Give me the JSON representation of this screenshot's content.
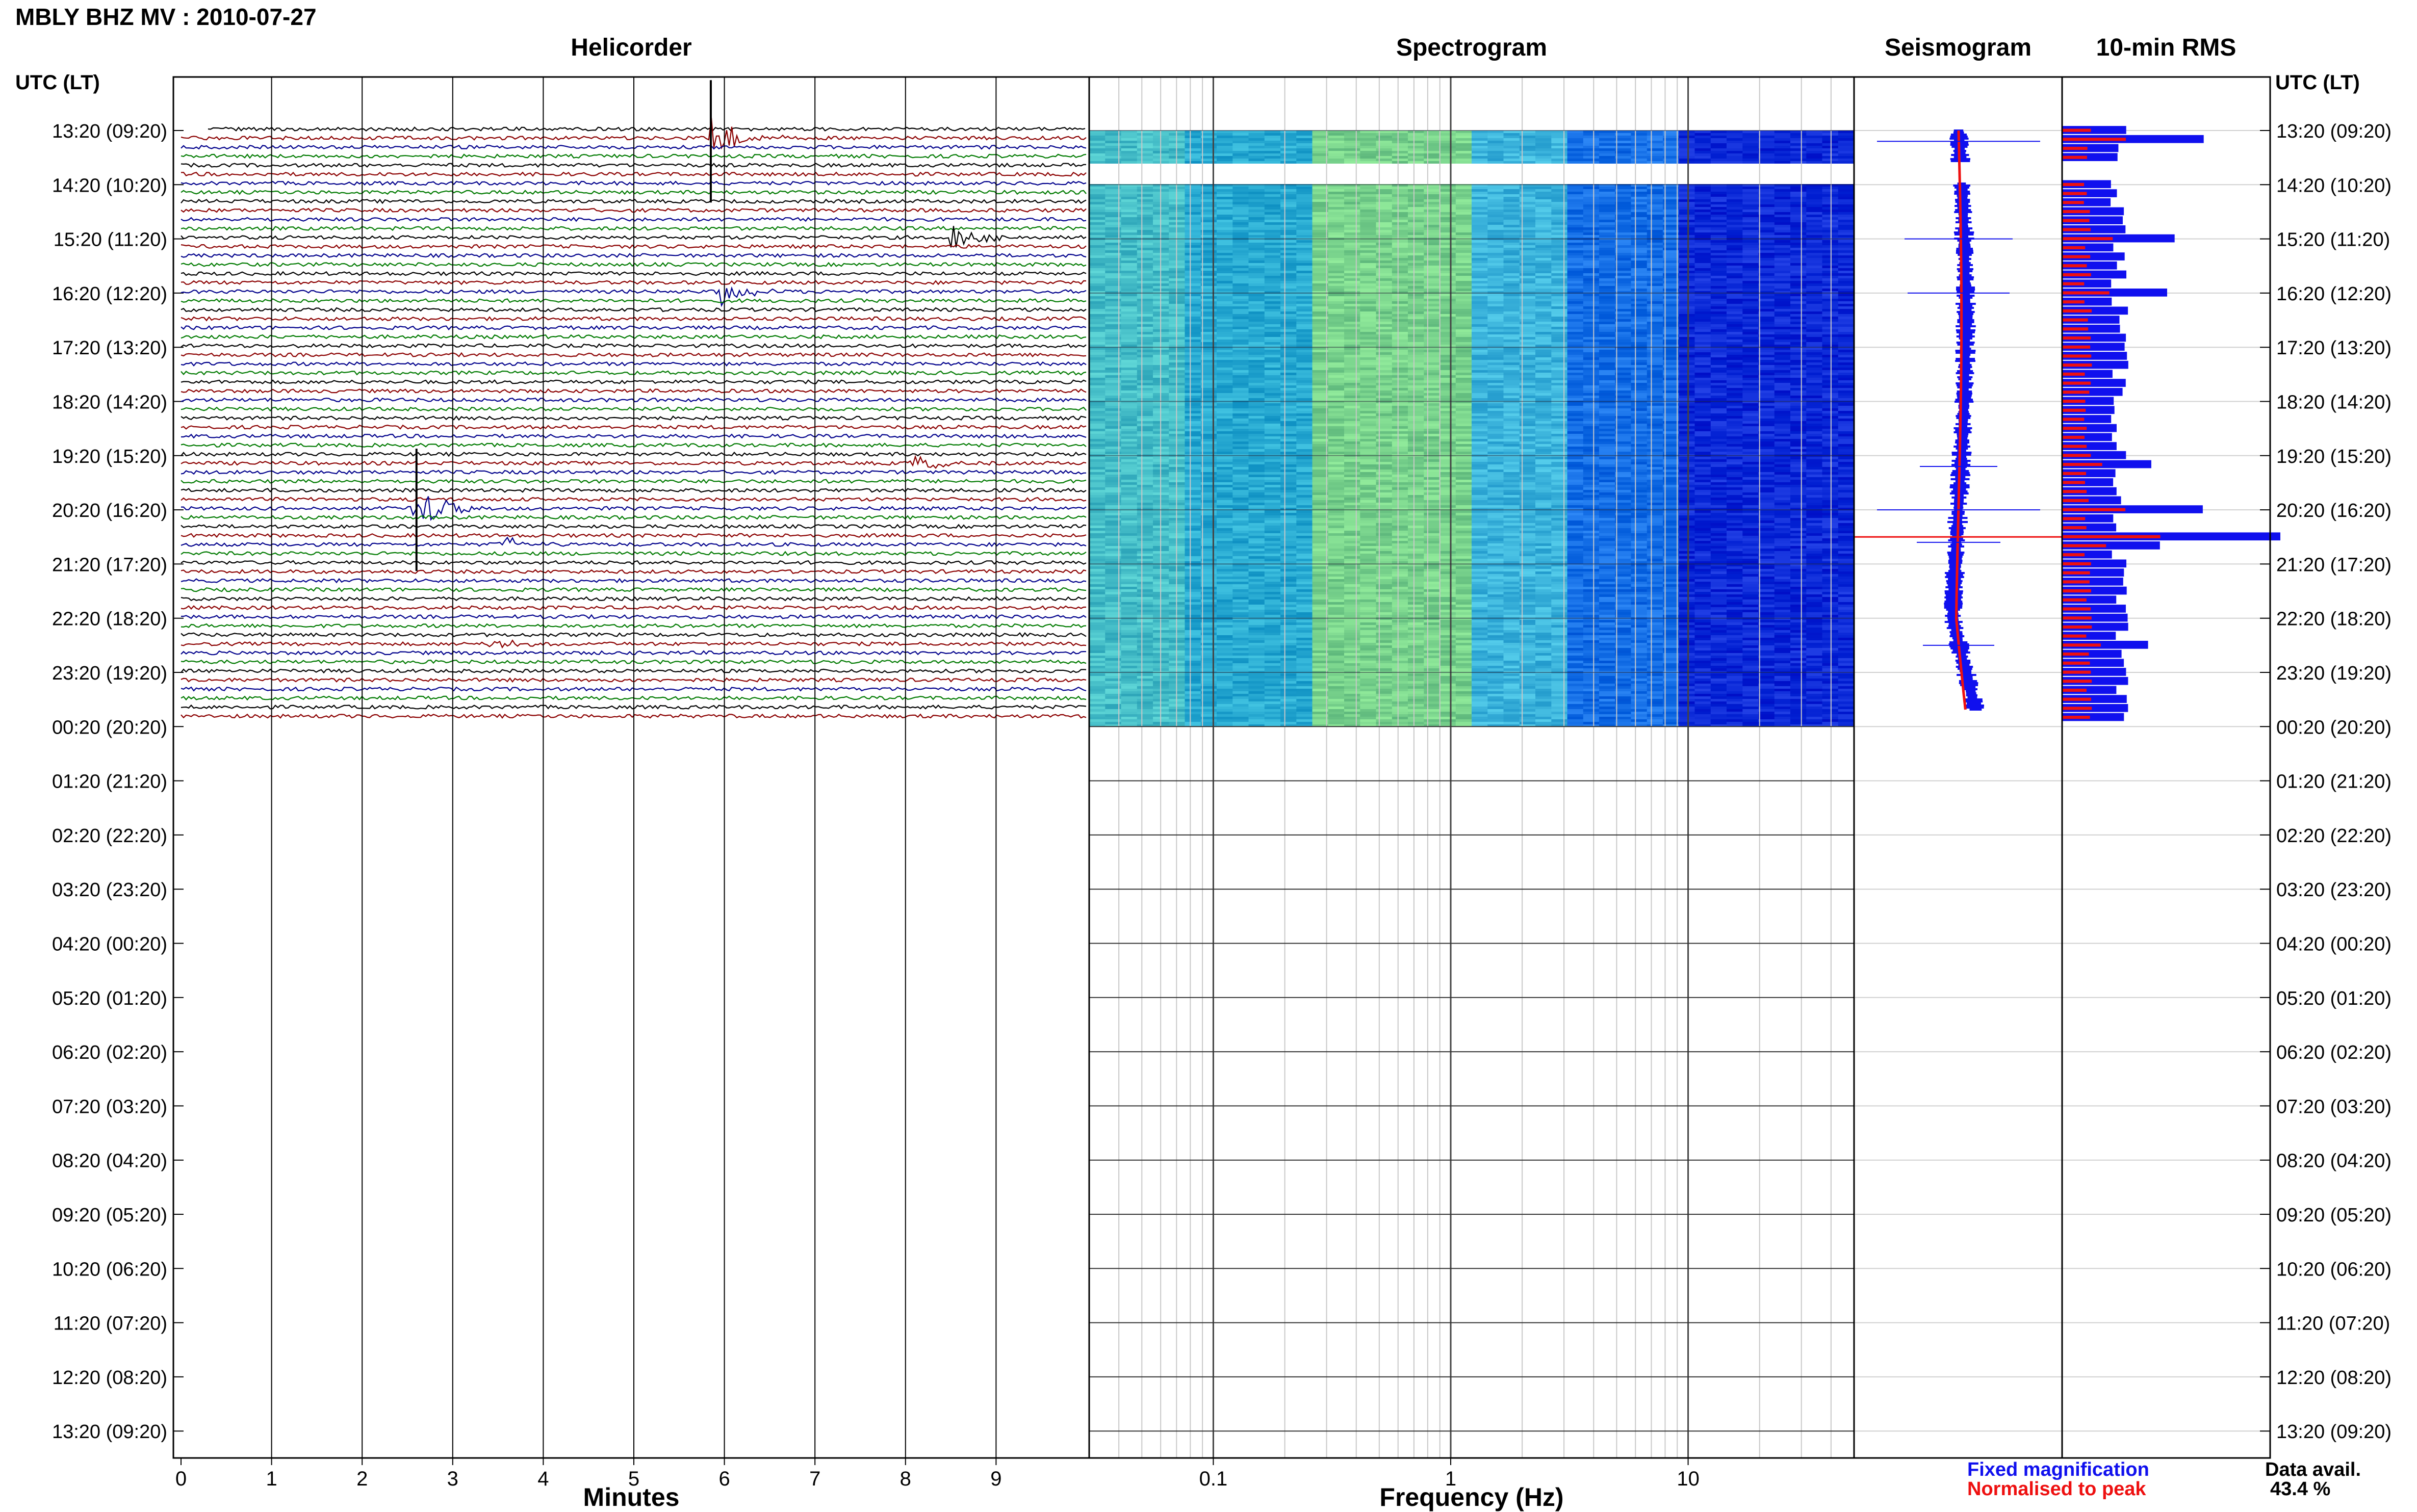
{
  "header": {
    "title": "MBLY BHZ MV : 2010-07-27",
    "utc_left": "UTC (LT)",
    "utc_right": "UTC (LT)"
  },
  "panels": {
    "helicorder": "Helicorder",
    "spectrogram": "Spectrogram",
    "seismogram": "Seismogram",
    "rms": "10-min RMS"
  },
  "axes": {
    "minutes_label": "Minutes",
    "frequency_label": "Frequency (Hz)",
    "minute_ticks": [
      "0",
      "1",
      "2",
      "3",
      "4",
      "5",
      "6",
      "7",
      "8",
      "9"
    ],
    "frequency_ticks": [
      "0.1",
      "1",
      "10"
    ]
  },
  "legend": {
    "fixed": "Fixed magnification",
    "normalised": "Normalised to peak"
  },
  "availability": {
    "label": "Data avail.",
    "value": "43.4 %"
  },
  "colors": {
    "trace_cycle": [
      "#000000",
      "#8b0000",
      "#00008b",
      "#007a00"
    ],
    "fixed": "#1010ee",
    "normalised": "#ee1010"
  },
  "chart_data": {
    "type": "heatmap",
    "time_labels": [
      "13:20 (09:20)",
      "14:20 (10:20)",
      "15:20 (11:20)",
      "16:20 (12:20)",
      "17:20 (13:20)",
      "18:20 (14:20)",
      "19:20 (15:20)",
      "20:20 (16:20)",
      "21:20 (17:20)",
      "22:20 (18:20)",
      "23:20 (19:20)",
      "00:20 (20:20)",
      "01:20 (21:20)",
      "02:20 (22:20)",
      "03:20 (23:20)",
      "04:20 (00:20)",
      "05:20 (01:20)",
      "06:20 (02:20)",
      "07:20 (03:20)",
      "08:20 (04:20)",
      "09:20 (05:20)",
      "10:20 (06:20)",
      "11:20 (07:20)",
      "12:20 (08:20)",
      "13:20 (09:20)"
    ],
    "minutes_range": [
      0,
      10
    ],
    "frequency_range_hz": [
      0.03,
      50
    ],
    "frequency_scale": "log",
    "data_rows_hours": 11,
    "gap_hours": [
      0.6,
      0.95
    ],
    "events": [
      {
        "hour": 0.2,
        "minute": 5.85,
        "amplitude": 1.0
      },
      {
        "hour": 2.0,
        "minute": 8.5,
        "amplitude": 0.55
      },
      {
        "hour": 3.0,
        "minute": 5.95,
        "amplitude": 0.5
      },
      {
        "hour": 7.0,
        "minute": 2.6,
        "amplitude": 1.0
      },
      {
        "hour": 7.6,
        "minute": 3.55,
        "amplitude": 0.35
      },
      {
        "hour": 6.2,
        "minute": 8.1,
        "amplitude": 0.3
      },
      {
        "hour": 9.5,
        "minute": 3.45,
        "amplitude": 0.25
      }
    ],
    "rms_peak_hour": 7.5
  }
}
